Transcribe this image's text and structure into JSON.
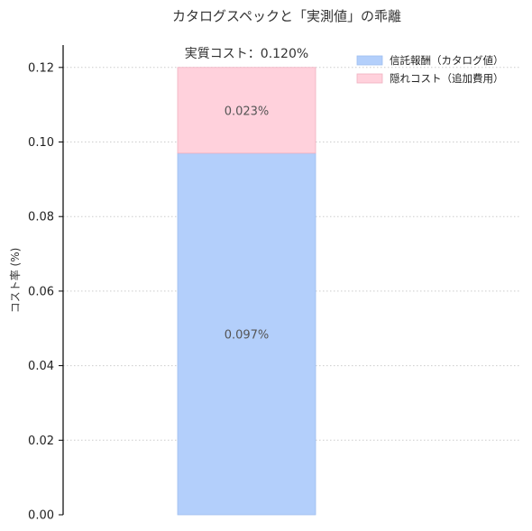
{
  "chart_data": {
    "type": "bar",
    "stacked": true,
    "title": "カタログスペックと「実測値」の乖離",
    "xlabel": "",
    "ylabel": "コスト率 (%)",
    "ylim": [
      0,
      0.126
    ],
    "yticks": [
      "0.00",
      "0.02",
      "0.04",
      "0.06",
      "0.08",
      "0.10",
      "0.12"
    ],
    "grid": "horizontal dotted",
    "legend_position": "top-right",
    "categories": [
      ""
    ],
    "series": [
      {
        "name": "信託報酬（カタログ値）",
        "values": [
          0.097
        ],
        "label": "0.097%",
        "color": "#b3cffb",
        "edge": "#9fbff0"
      },
      {
        "name": "隠れコスト（追加費用）",
        "values": [
          0.023
        ],
        "label": "0.023%",
        "color": "#ffd1dc",
        "edge": "#f0b0c0"
      }
    ],
    "total_label": "実質コスト：0.120%"
  }
}
